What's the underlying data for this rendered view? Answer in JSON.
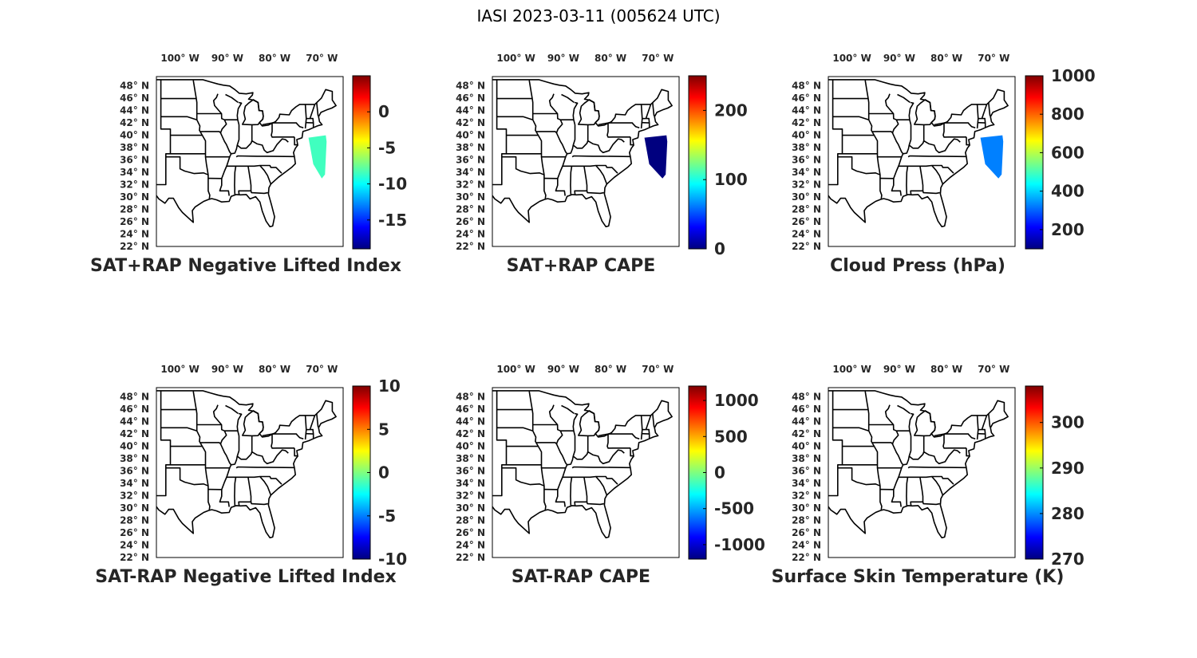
{
  "figure_title": "IASI 2023-03-11 (005624 UTC)",
  "lon_labels": [
    "100° W",
    "90° W",
    "80° W",
    "70° W"
  ],
  "lat_labels": [
    "48° N",
    "46° N",
    "44° N",
    "42° N",
    "40° N",
    "38° N",
    "36° N",
    "34° N",
    "32° N",
    "30° N",
    "28° N",
    "26° N",
    "24° N",
    "22° N"
  ],
  "colormap": "jet",
  "colormap_stops": [
    "#00007f",
    "#0000ff",
    "#007fff",
    "#00ffff",
    "#7fff7f",
    "#ffff00",
    "#ff7f00",
    "#ff0000",
    "#7f0000"
  ],
  "outline_color": "#000000",
  "panels": [
    {
      "title": "SAT+RAP Negative Lifted Index",
      "colorbar": {
        "ticks": [
          "0",
          "-5",
          "-10",
          "-15"
        ],
        "tick_values": [
          0,
          -5,
          -10,
          -15
        ],
        "range": [
          -19,
          5
        ]
      },
      "data_swath": {
        "present": true,
        "lon_range": [
          -73,
          -69
        ],
        "lat_range": [
          33,
          40
        ],
        "values_range": [
          -12,
          -6
        ],
        "dominant_color": "#40ffbf"
      }
    },
    {
      "title": "SAT+RAP CAPE",
      "colorbar": {
        "ticks": [
          "200",
          "100",
          "0"
        ],
        "tick_values": [
          200,
          100,
          0
        ],
        "range": [
          0,
          250
        ]
      },
      "data_swath": {
        "present": true,
        "lon_range": [
          -73,
          -68
        ],
        "lat_range": [
          33,
          40
        ],
        "values_range": [
          0,
          10
        ],
        "dominant_color": "#00007f"
      }
    },
    {
      "title": "Cloud Press (hPa)",
      "colorbar": {
        "ticks": [
          "1000",
          "800",
          "600",
          "400",
          "200"
        ],
        "tick_values": [
          1000,
          800,
          600,
          400,
          200
        ],
        "range": [
          100,
          1000
        ]
      },
      "data_swath": {
        "present": true,
        "lon_range": [
          -73,
          -68
        ],
        "lat_range": [
          33,
          40
        ],
        "values_range": [
          300,
          550
        ],
        "dominant_color": "#0080ff"
      }
    },
    {
      "title": "SAT-RAP Negative Lifted Index",
      "colorbar": {
        "ticks": [
          "10",
          "5",
          "0",
          "-5",
          "-10"
        ],
        "tick_values": [
          10,
          5,
          0,
          -5,
          -10
        ],
        "range": [
          -10,
          10
        ]
      },
      "data_swath": {
        "present": false
      }
    },
    {
      "title": "SAT-RAP CAPE",
      "colorbar": {
        "ticks": [
          "1000",
          "500",
          "0",
          "-500",
          "-1000"
        ],
        "tick_values": [
          1000,
          500,
          0,
          -500,
          -1000
        ],
        "range": [
          -1200,
          1200
        ]
      },
      "data_swath": {
        "present": false
      }
    },
    {
      "title": "Surface Skin Temperature (K)",
      "colorbar": {
        "ticks": [
          "300",
          "290",
          "280",
          "270"
        ],
        "tick_values": [
          300,
          290,
          280,
          270
        ],
        "range": [
          270,
          308
        ]
      },
      "data_swath": {
        "present": false
      }
    }
  ]
}
